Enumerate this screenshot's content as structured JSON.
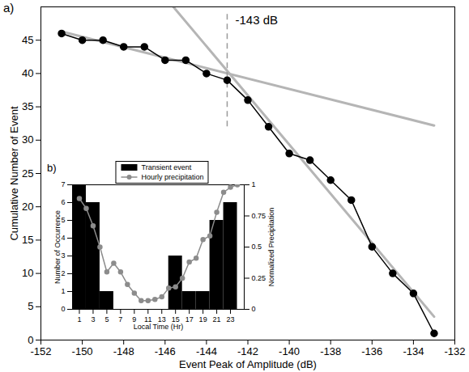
{
  "chart_data": [
    {
      "type": "line",
      "title": "a)",
      "xlabel": "Event Peak of Amplitude (dB)",
      "ylabel": "Cumulative Number of Event",
      "x": [
        -151,
        -150,
        -149,
        -148,
        -147,
        -146,
        -145,
        -144,
        -143,
        -142,
        -141,
        -140,
        -139,
        -138,
        -137,
        -136,
        -135,
        -134,
        -133
      ],
      "values": [
        46,
        45,
        45,
        44,
        44,
        42,
        42,
        40,
        39,
        36,
        32,
        28,
        27,
        24,
        21,
        14,
        10,
        7,
        1
      ],
      "color": "#000000",
      "marker": "circle",
      "xlim": [
        -152,
        -132
      ],
      "xticks": [
        -152,
        -150,
        -148,
        -146,
        -144,
        -142,
        -140,
        -138,
        -136,
        -134,
        -132
      ],
      "ylim": [
        0,
        50
      ],
      "yticks": [
        0,
        5,
        10,
        15,
        20,
        25,
        30,
        35,
        40,
        45
      ],
      "grid": false,
      "fit_lines": [
        {
          "x": [
            -151,
            -133
          ],
          "y": [
            46.3,
            32.2
          ],
          "color": "#b5b5b5"
        },
        {
          "x": [
            -145.6,
            -133
          ],
          "y": [
            50,
            3.5
          ],
          "color": "#b5b5b5"
        }
      ],
      "threshold": {
        "x": -143,
        "y": [
          32,
          49
        ],
        "label": "-143 dB",
        "line_style": "dashed",
        "color": "#9a9a9a"
      }
    },
    {
      "type": "bar",
      "title": "b)",
      "xlabel": "Local Time (Hr)",
      "ylabel": "Number of Occurrence",
      "y2label": "Normalized Precipitation",
      "legend": "top",
      "xlim": [
        0,
        25
      ],
      "xticks": [
        1,
        3,
        5,
        7,
        9,
        11,
        13,
        15,
        17,
        19,
        21,
        23
      ],
      "ylim": [
        0,
        7
      ],
      "yticks": [
        0,
        1,
        2,
        3,
        4,
        5,
        6,
        7
      ],
      "y2lim": [
        0,
        1
      ],
      "y2ticks": [
        0,
        0.25,
        0.5,
        0.75,
        1
      ],
      "series": [
        {
          "name": "Transient event",
          "type": "bar",
          "color": "#000000",
          "x": [
            1,
            3,
            5,
            7,
            9,
            11,
            13,
            15,
            17,
            19,
            21,
            23
          ],
          "values": [
            7,
            6,
            1,
            0,
            0,
            0,
            0,
            3,
            1,
            1,
            5,
            6
          ]
        },
        {
          "name": "Hourly precipitation",
          "type": "line",
          "axis": "y2",
          "color": "#8c8c8c",
          "marker": "circle",
          "x": [
            1,
            2,
            3,
            4,
            5,
            6,
            7,
            8,
            9,
            10,
            11,
            12,
            13,
            14,
            15,
            16,
            17,
            18,
            19,
            20,
            21,
            22,
            23,
            24
          ],
          "values": [
            0.89,
            0.81,
            0.67,
            0.5,
            0.3,
            0.37,
            0.3,
            0.2,
            0.13,
            0.07,
            0.07,
            0.08,
            0.1,
            0.17,
            0.18,
            0.25,
            0.38,
            0.41,
            0.56,
            0.59,
            0.78,
            0.94,
            0.98,
            1.0
          ]
        }
      ]
    }
  ]
}
